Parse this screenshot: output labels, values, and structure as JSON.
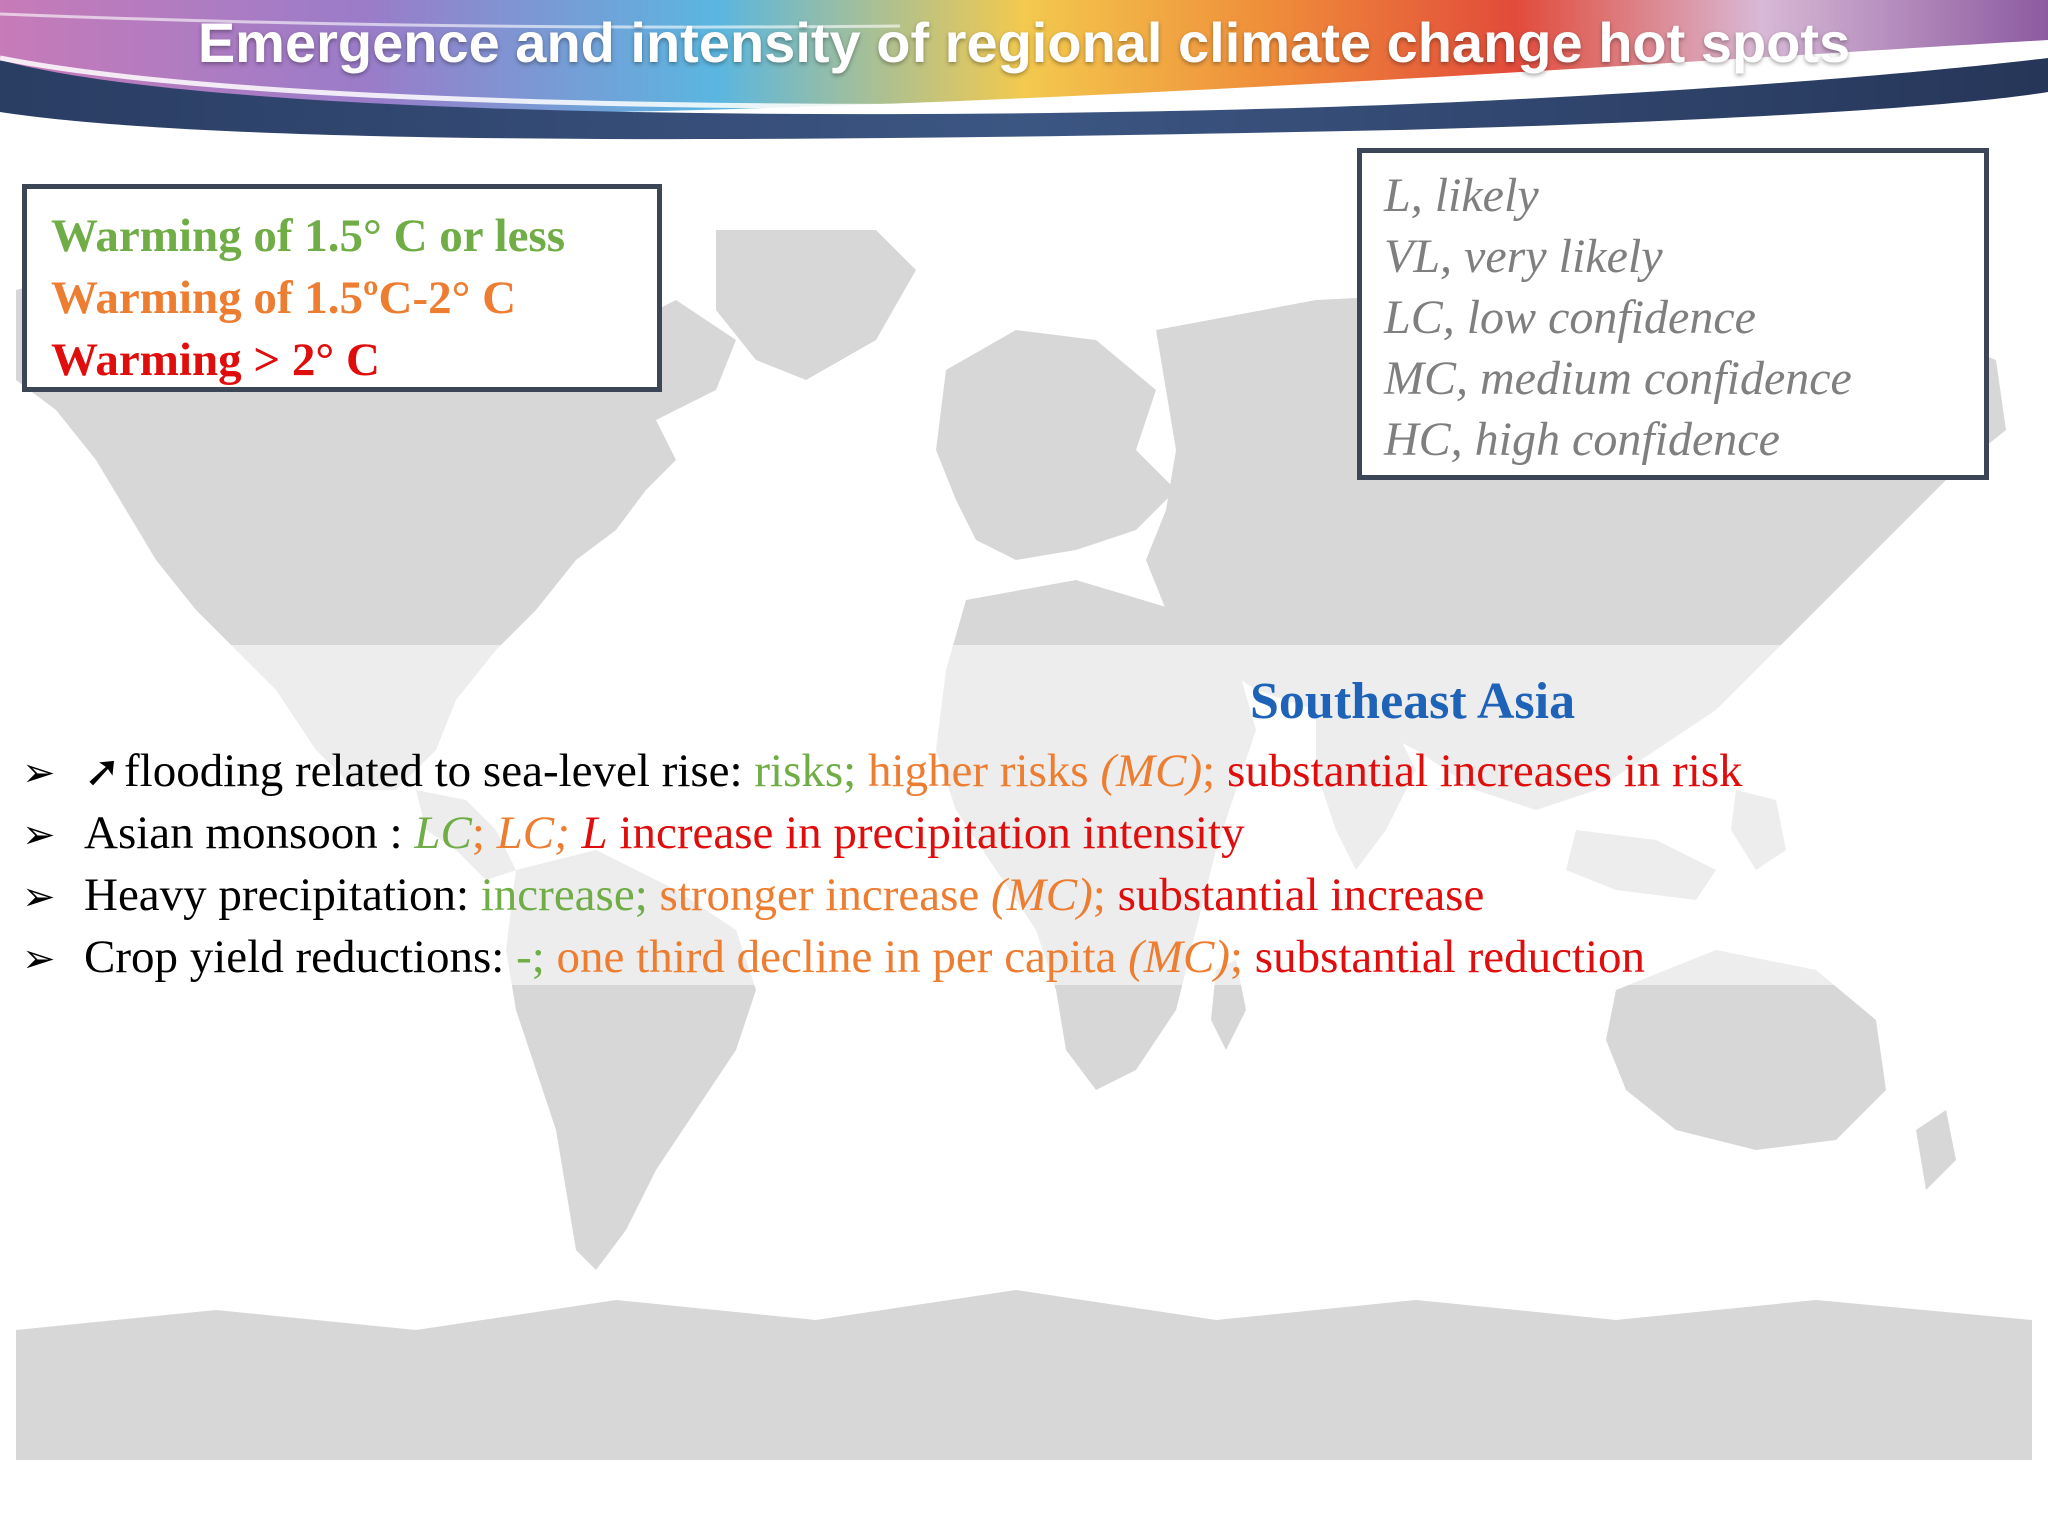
{
  "header": {
    "title": "Emergence and intensity of regional climate change hot spots"
  },
  "warming_legend": {
    "items": [
      {
        "label": "Warming of 1.5°  C or less",
        "color": "#70ad47"
      },
      {
        "label": "Warming of 1.5ºC-2°  C",
        "color": "#ed7d31"
      },
      {
        "label": "Warming > 2°  C",
        "color": "#e00d0d"
      }
    ]
  },
  "confidence_legend": {
    "items": [
      "L, likely",
      "VL, very likely",
      "LC, low confidence",
      "MC, medium confidence",
      "HC, high confidence"
    ]
  },
  "region": {
    "title": "Southeast Asia"
  },
  "bullets": [
    {
      "label": "flooding related to sea-level rise: ",
      "green": "risks; ",
      "orange": "higher risks ",
      "orange_conf": "(MC)",
      "sep": "; ",
      "red": "substantial increases in risk"
    },
    {
      "label": "Asian monsoon : ",
      "green": "LC",
      "sep1": "; ",
      "orange": "LC; ",
      "red_conf": "L",
      "red": " increase in precipitation intensity"
    },
    {
      "label": "Heavy precipitation: ",
      "green": "increase; ",
      "orange": "stronger increase ",
      "orange_conf": "(MC)",
      "sep": "; ",
      "red": "substantial increase"
    },
    {
      "label": "Crop yield reductions: ",
      "green": "-; ",
      "orange": "one third decline in per capita ",
      "orange_conf": "(MC)",
      "sep": "; ",
      "red": "substantial reduction"
    }
  ],
  "icons": {
    "bullet": "arrowhead-bullet-icon",
    "trend": "up-right-arrow-icon"
  },
  "colors": {
    "green": "#70ad47",
    "orange": "#ed7d31",
    "red": "#e00d0d",
    "region_blue": "#1e63b8",
    "legend_gray": "#7f7f7f",
    "box_border": "#3b4656"
  }
}
